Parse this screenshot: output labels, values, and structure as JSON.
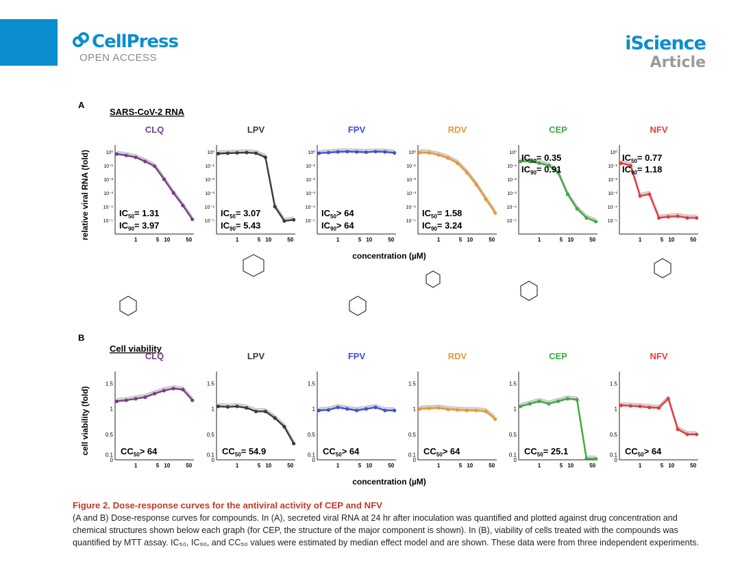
{
  "header": {
    "brand": "CellPress",
    "brand_sub": "OPEN ACCESS",
    "journal": "iScience",
    "article_type": "Article"
  },
  "colors": {
    "CLQ": "#7b3b8c",
    "LPV": "#3a3a3a",
    "FPV": "#3a4ee8",
    "RDV": "#f0952e",
    "CEP": "#3cab3c",
    "NFV": "#e83a3a",
    "brand": "#0a8ecf",
    "caption_title": "#c0392b"
  },
  "figure": {
    "panel_a_label": "A",
    "panel_a_title": "SARS-CoV-2 RNA",
    "panel_a_ylabel": "relative viral RNA (fold)",
    "panel_b_label": "B",
    "panel_b_title": "Cell viability",
    "panel_b_ylabel": "cell viability (fold)",
    "xlabel": "concentration (µM)",
    "rna_yticks": [
      "10⁰",
      "10⁻¹",
      "10⁻²",
      "10⁻³",
      "10⁻⁴",
      "10⁻⁵"
    ],
    "via_yticks": [
      "1.5",
      "1",
      "0.5",
      "0.1",
      "0"
    ],
    "xticks": [
      "1",
      "5",
      "10",
      "50"
    ]
  },
  "chart_data": [
    {
      "type": "line",
      "panel": "A",
      "compound": "CLQ",
      "yscale": "log",
      "x": [
        0.25,
        0.5,
        1,
        2,
        4,
        8,
        16,
        32,
        64
      ],
      "y": [
        0.7,
        0.55,
        0.4,
        0.2,
        0.09,
        0.01,
        0.001,
        0.00012,
        1.2e-05
      ],
      "ic50": "1.31",
      "ic90": "3.97"
    },
    {
      "type": "line",
      "panel": "A",
      "compound": "LPV",
      "yscale": "log",
      "x": [
        0.25,
        0.5,
        1,
        2,
        4,
        8,
        16,
        32,
        64
      ],
      "y": [
        0.75,
        0.8,
        0.85,
        0.9,
        0.8,
        0.4,
        0.0001,
        9e-06,
        1.1e-05
      ],
      "ic50": "3.07",
      "ic90": "5.43"
    },
    {
      "type": "line",
      "panel": "A",
      "compound": "FPV",
      "yscale": "log",
      "x": [
        0.25,
        0.5,
        1,
        2,
        4,
        8,
        16,
        32,
        64
      ],
      "y": [
        0.8,
        0.9,
        1,
        1.05,
        1.0,
        0.95,
        1.05,
        1.0,
        0.85
      ],
      "ic50": "> 64",
      "ic90": "> 64"
    },
    {
      "type": "line",
      "panel": "A",
      "compound": "RDV",
      "yscale": "log",
      "x": [
        0.25,
        0.5,
        1,
        2,
        4,
        8,
        16,
        32,
        64
      ],
      "y": [
        0.9,
        0.85,
        0.6,
        0.35,
        0.15,
        0.03,
        0.004,
        0.00035,
        3.5e-05
      ],
      "ic50": "1.58",
      "ic90": "3.24"
    },
    {
      "type": "line",
      "panel": "A",
      "compound": "CEP",
      "yscale": "log",
      "x": [
        0.25,
        0.5,
        1,
        2,
        4,
        8,
        16,
        32,
        64
      ],
      "y": [
        0.2,
        0.2,
        0.15,
        0.1,
        0.03,
        0.0008,
        7e-05,
        1.5e-05,
        8e-06
      ],
      "ic50": "0.35",
      "ic90": "0.91"
    },
    {
      "type": "line",
      "panel": "A",
      "compound": "NFV",
      "yscale": "log",
      "x": [
        0.25,
        0.5,
        1,
        2,
        4,
        8,
        16,
        32,
        64
      ],
      "y": [
        0.15,
        0.1,
        0.0006,
        0.0008,
        1.5e-05,
        1.8e-05,
        2e-05,
        1.5e-05,
        1.5e-05
      ],
      "ic50": "0.77",
      "ic90": "1.18"
    },
    {
      "type": "line",
      "panel": "B",
      "compound": "CLQ",
      "x": [
        0.25,
        0.5,
        1,
        2,
        4,
        8,
        16,
        32,
        64
      ],
      "y": [
        1.15,
        1.17,
        1.2,
        1.23,
        1.3,
        1.36,
        1.4,
        1.38,
        1.17
      ],
      "cc50": "> 64"
    },
    {
      "type": "line",
      "panel": "B",
      "compound": "LPV",
      "x": [
        0.25,
        0.5,
        1,
        2,
        4,
        8,
        16,
        32,
        64
      ],
      "y": [
        1.05,
        1.04,
        1.05,
        1.02,
        0.95,
        0.95,
        0.82,
        0.65,
        0.32
      ],
      "cc50": "54.9"
    },
    {
      "type": "line",
      "panel": "B",
      "compound": "FPV",
      "x": [
        0.25,
        0.5,
        1,
        2,
        4,
        8,
        16,
        32,
        64
      ],
      "y": [
        0.97,
        0.98,
        1.03,
        1.0,
        0.97,
        1.0,
        1.03,
        0.97,
        0.97
      ],
      "cc50": "> 64"
    },
    {
      "type": "line",
      "panel": "B",
      "compound": "RDV",
      "x": [
        0.25,
        0.5,
        1,
        2,
        4,
        8,
        16,
        32,
        64
      ],
      "y": [
        1.0,
        1.01,
        1.02,
        0.99,
        0.98,
        0.97,
        0.97,
        0.95,
        0.8
      ],
      "cc50": "> 64"
    },
    {
      "type": "line",
      "panel": "B",
      "compound": "CEP",
      "x": [
        0.25,
        0.5,
        1,
        2,
        4,
        8,
        16,
        32,
        64
      ],
      "y": [
        1.05,
        1.1,
        1.15,
        1.1,
        1.15,
        1.2,
        1.18,
        0.02,
        0.02
      ],
      "cc50": "25.1"
    },
    {
      "type": "line",
      "panel": "B",
      "compound": "NFV",
      "x": [
        0.25,
        0.5,
        1,
        2,
        4,
        8,
        16,
        32,
        64
      ],
      "y": [
        1.07,
        1.06,
        1.05,
        1.03,
        1.02,
        1.2,
        0.6,
        0.5,
        0.5
      ],
      "cc50": "> 64"
    }
  ],
  "caption": {
    "title": "Figure 2. Dose-response curves for the antiviral activity of CEP and NFV",
    "body": "(A and B) Dose-response curves for compounds. In (A), secreted viral RNA at 24 hr after inoculation was quantified and plotted against drug concentration and chemical structures shown below each graph (for CEP, the structure of the major component is shown). In (B), viability of cells treated with the compounds was quantified by MTT assay. IC₅₀, IC₉₀, and CC₅₀ values were estimated by median effect model and are shown. These data were from three independent experiments."
  }
}
